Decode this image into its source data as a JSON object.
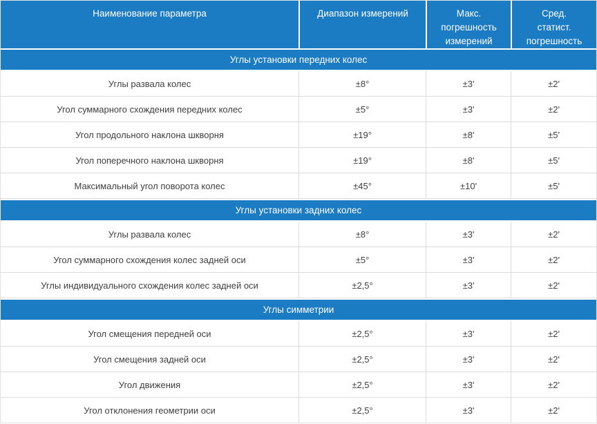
{
  "colors": {
    "header_bg": "#1b7cc4",
    "header_text": "#ffffff",
    "cell_text": "#3f3f3f",
    "border": "#dcdcdc"
  },
  "header": {
    "col_param": "Наименование параметра",
    "col_range": "Диапазон измерений",
    "col_max_error": "Макс.\nпогрешность\nизмерений",
    "col_stat_error": "Сред.\nстатист.\nпогрешность"
  },
  "chart_data": {
    "type": "table",
    "columns": [
      "Наименование параметра",
      "Диапазон измерений",
      "Макс. погрешность измерений",
      "Сред. статист. погрешность"
    ],
    "sections": [
      {
        "header": "Углы установки передних колес",
        "rows": [
          [
            "Углы развала колес",
            "±8°",
            "±3'",
            "±2'"
          ],
          [
            "Угол суммарного схождения передних колес",
            "±5°",
            "±3'",
            "±2'"
          ],
          [
            "Угол продольного наклона шкворня",
            "±19°",
            "±8'",
            "±5'"
          ],
          [
            "Угол поперечного наклона шкворня",
            "±19°",
            "±8'",
            "±5'"
          ],
          [
            "Максимальный угол поворота колес",
            "±45°",
            "±10'",
            "±5'"
          ]
        ]
      },
      {
        "header": "Углы установки задних колес",
        "rows": [
          [
            "Углы развала колес",
            "±8°",
            "±3'",
            "±2'"
          ],
          [
            "Угол суммарного схождения колес задней оси",
            "±5°",
            "±3'",
            "±2'"
          ],
          [
            "Углы индивидуального схождения колес задней оси",
            "±2,5°",
            "±3'",
            "±2'"
          ]
        ]
      },
      {
        "header": "Углы симметрии",
        "rows": [
          [
            "Угол смещения передней оси",
            "±2,5°",
            "±3'",
            "±2'"
          ],
          [
            "Угол смещения задней оси",
            "±2,5°",
            "±3'",
            "±2'"
          ],
          [
            "Угол движения",
            "±2,5°",
            "±3'",
            "±2'"
          ],
          [
            "Угол отклонения геометрии оси",
            "±2,5°",
            "±3'",
            "±2'"
          ]
        ]
      }
    ]
  }
}
